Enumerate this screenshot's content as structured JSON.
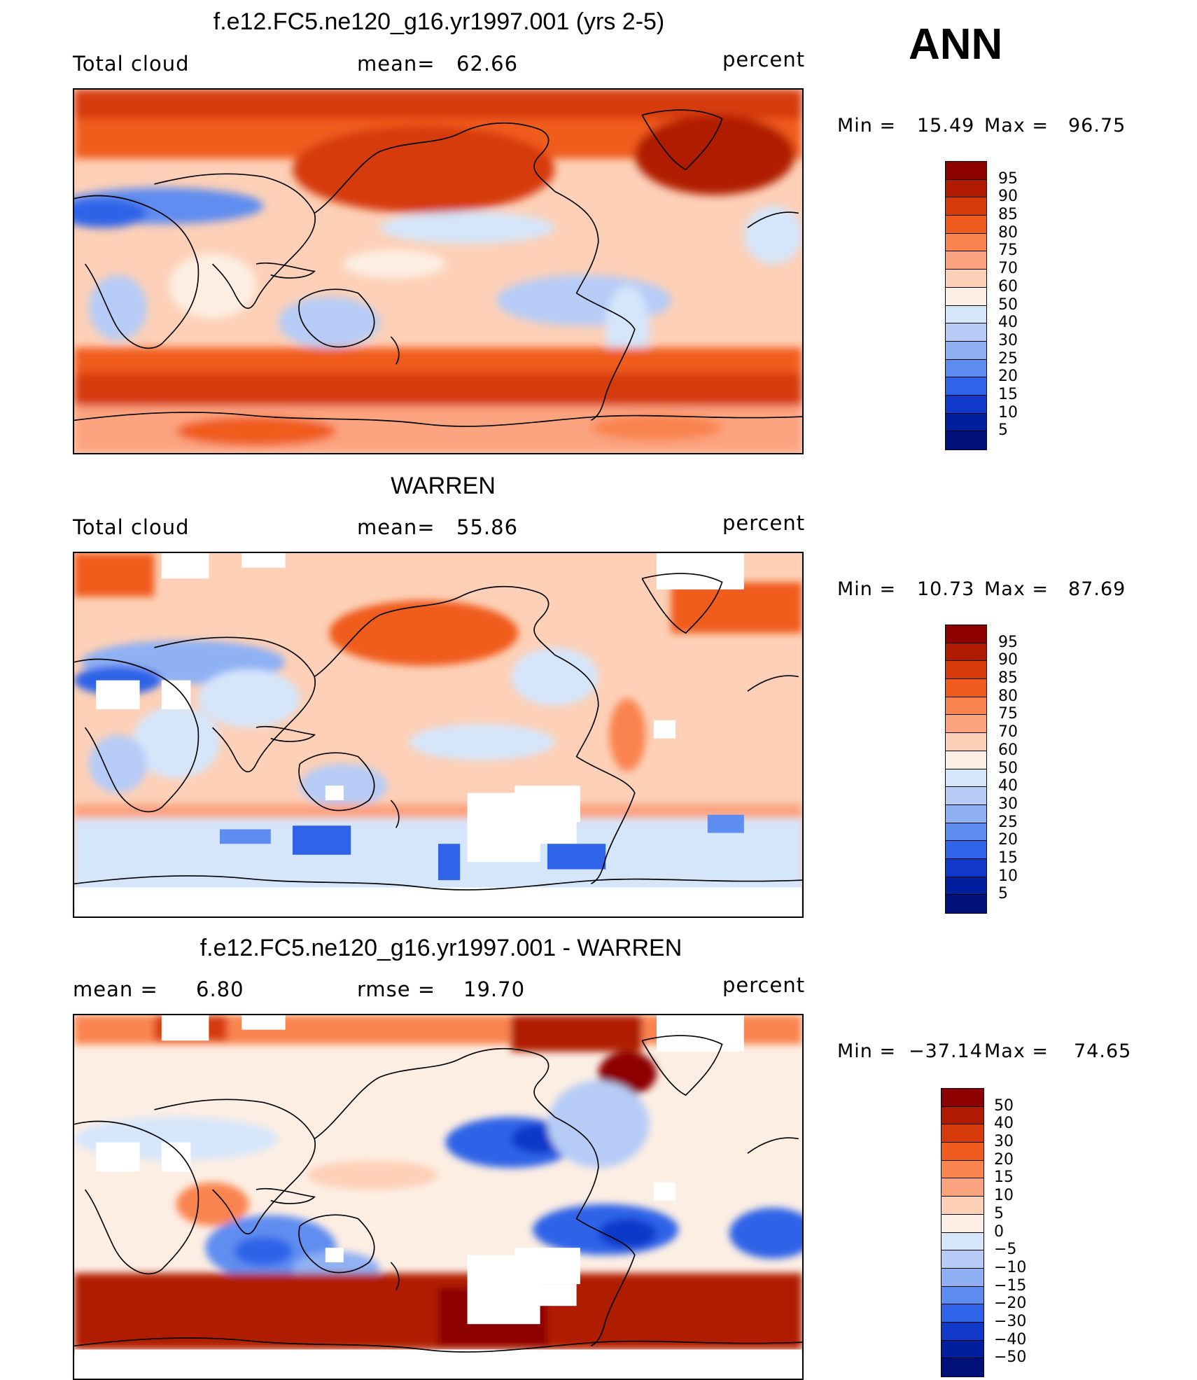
{
  "season": "ANN",
  "chart_data": [
    {
      "type": "heatmap",
      "title": "f.e12.FC5.ne120_g16.yr1997.001 (yrs 2-5)",
      "left_label": "Total cloud",
      "stat_label": "mean=",
      "stat_value": "62.66",
      "units": "percent",
      "min_label": "Min =",
      "min_value": "15.49",
      "max_label": "Max =",
      "max_value": "96.75",
      "colorbar_ticks": [
        "95",
        "90",
        "85",
        "80",
        "75",
        "70",
        "60",
        "50",
        "40",
        "30",
        "25",
        "20",
        "15",
        "10",
        "5"
      ],
      "colorbar_colors": [
        "#8c0000",
        "#b01a00",
        "#d63a0a",
        "#f05b1f",
        "#fa8450",
        "#fca37f",
        "#fdd0b7",
        "#fdeee3",
        "#d5e6fb",
        "#b6ccf7",
        "#8fb1f4",
        "#5e8df0",
        "#2f63e8",
        "#1038c9",
        "#001f9e",
        "#00107a"
      ]
    },
    {
      "type": "heatmap",
      "title": "WARREN",
      "left_label": "Total cloud",
      "stat_label": "mean=",
      "stat_value": "55.86",
      "units": "percent",
      "min_label": "Min =",
      "min_value": "10.73",
      "max_label": "Max =",
      "max_value": "87.69",
      "colorbar_ticks": [
        "95",
        "90",
        "85",
        "80",
        "75",
        "70",
        "60",
        "50",
        "40",
        "30",
        "25",
        "20",
        "15",
        "10",
        "5"
      ],
      "colorbar_colors": [
        "#8c0000",
        "#b01a00",
        "#d63a0a",
        "#f05b1f",
        "#fa8450",
        "#fca37f",
        "#fdd0b7",
        "#fdeee3",
        "#d5e6fb",
        "#b6ccf7",
        "#8fb1f4",
        "#5e8df0",
        "#2f63e8",
        "#1038c9",
        "#001f9e",
        "#00107a"
      ]
    },
    {
      "type": "heatmap",
      "title": "f.e12.FC5.ne120_g16.yr1997.001 - WARREN",
      "left_label": "mean =",
      "left_value": "6.80",
      "stat_label": "rmse =",
      "stat_value": "19.70",
      "units": "percent",
      "min_label": "Min =",
      "min_value": "−37.14",
      "max_label": "Max =",
      "max_value": "74.65",
      "colorbar_ticks": [
        "50",
        "40",
        "30",
        "20",
        "15",
        "10",
        "5",
        "0",
        "−5",
        "−10",
        "−15",
        "−20",
        "−30",
        "−40",
        "−50"
      ],
      "colorbar_colors": [
        "#8c0000",
        "#b01a00",
        "#d63a0a",
        "#f05b1f",
        "#fa8450",
        "#fca37f",
        "#fdd0b7",
        "#fdeee3",
        "#d5e6fb",
        "#b6ccf7",
        "#8fb1f4",
        "#5e8df0",
        "#2f63e8",
        "#1038c9",
        "#001f9e",
        "#00107a"
      ]
    }
  ]
}
